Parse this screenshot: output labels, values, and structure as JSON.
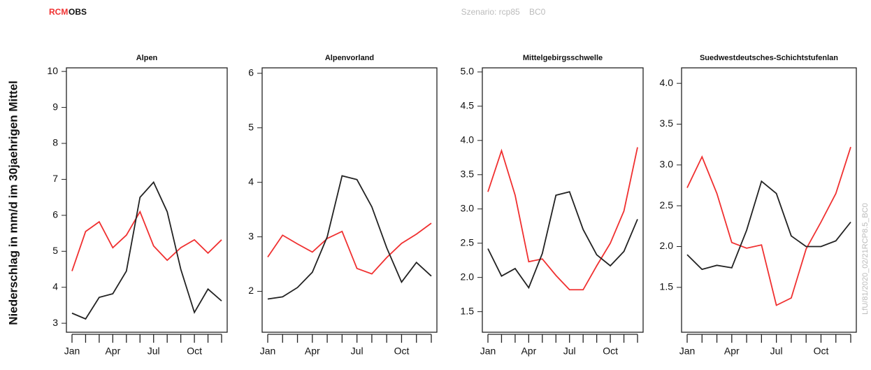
{
  "header": {
    "legend_prefix_note": null,
    "scenario": "Szenario: rcp85    BC0",
    "ylabel": "Niederschlag in mm/d im 30jaehrigen Mittel",
    "side_note": "LfU/81/2020_02/21RCP8.5_BC0"
  },
  "chart_data": [
    {
      "type": "line",
      "title": "Alpen",
      "categories": [
        "Jan",
        null,
        null,
        "Apr",
        null,
        null,
        "Jul",
        null,
        null,
        "Oct",
        null,
        null
      ],
      "series": [
        {
          "name": "RCM",
          "color": "#f03030",
          "values": [
            4.45,
            5.55,
            5.82,
            5.1,
            5.45,
            6.1,
            5.15,
            4.75,
            5.1,
            5.32,
            4.95,
            5.32
          ]
        },
        {
          "name": "OBS",
          "color": "#222222",
          "values": [
            3.28,
            3.12,
            3.72,
            3.82,
            4.45,
            6.5,
            6.92,
            6.1,
            4.5,
            3.3,
            3.95,
            3.62
          ]
        }
      ],
      "ylim": [
        2.75,
        10.1
      ],
      "yticks": [
        3,
        4,
        5,
        6,
        7,
        8,
        9,
        10
      ]
    },
    {
      "type": "line",
      "title": "Alpenvorland",
      "categories": [
        "Jan",
        null,
        null,
        "Apr",
        null,
        null,
        "Jul",
        null,
        null,
        "Oct",
        null,
        null
      ],
      "series": [
        {
          "name": "RCM",
          "color": "#f03030",
          "values": [
            2.63,
            3.03,
            2.87,
            2.72,
            2.97,
            3.1,
            2.42,
            2.32,
            2.62,
            2.88,
            3.05,
            3.25
          ]
        },
        {
          "name": "OBS",
          "color": "#222222",
          "values": [
            1.86,
            1.9,
            2.07,
            2.35,
            3.0,
            4.12,
            4.05,
            3.55,
            2.8,
            2.17,
            2.53,
            2.28
          ]
        }
      ],
      "ylim": [
        1.25,
        6.1
      ],
      "yticks": [
        2,
        3,
        4,
        5,
        6
      ]
    },
    {
      "type": "line",
      "title": "Mittelgebirgsschwelle",
      "categories": [
        "Jan",
        null,
        null,
        "Apr",
        null,
        null,
        "Jul",
        null,
        null,
        "Oct",
        null,
        null
      ],
      "series": [
        {
          "name": "RCM",
          "color": "#f03030",
          "values": [
            3.25,
            3.85,
            3.2,
            2.23,
            2.27,
            2.03,
            1.82,
            1.82,
            2.17,
            2.5,
            2.97,
            3.9
          ]
        },
        {
          "name": "OBS",
          "color": "#222222",
          "values": [
            2.42,
            2.02,
            2.13,
            1.85,
            2.35,
            3.2,
            3.25,
            2.7,
            2.33,
            2.17,
            2.38,
            2.85
          ]
        }
      ],
      "ylim": [
        1.2,
        5.06
      ],
      "yticks": [
        {
          "value": 1.5,
          "label": "1.5"
        },
        {
          "value": 2,
          "label": "2.0"
        },
        {
          "value": 2.5,
          "label": "2.5"
        },
        {
          "value": 3,
          "label": "3.0"
        },
        {
          "value": 3.5,
          "label": "3.5"
        },
        {
          "value": 4,
          "label": "4.0"
        },
        {
          "value": 4.5,
          "label": "4.5"
        },
        {
          "value": 5,
          "label": "5.0"
        }
      ]
    },
    {
      "type": "line",
      "title": "Suedwestdeutsches-Schichtstufenlan",
      "categories": [
        "Jan",
        null,
        null,
        "Apr",
        null,
        null,
        "Jul",
        null,
        null,
        "Oct",
        null,
        null
      ],
      "series": [
        {
          "name": "RCM",
          "color": "#f03030",
          "values": [
            2.72,
            3.1,
            2.65,
            2.05,
            1.98,
            2.02,
            1.28,
            1.37,
            1.97,
            2.3,
            2.65,
            3.22
          ]
        },
        {
          "name": "OBS",
          "color": "#222222",
          "values": [
            1.9,
            1.72,
            1.77,
            1.74,
            2.2,
            2.8,
            2.65,
            2.13,
            2.0,
            2.0,
            2.07,
            2.3
          ]
        }
      ],
      "ylim": [
        0.95,
        4.19
      ],
      "yticks": [
        {
          "value": 1.5,
          "label": "1.5"
        },
        {
          "value": 2,
          "label": "2.0"
        },
        {
          "value": 2.5,
          "label": "2.5"
        },
        {
          "value": 3,
          "label": "3.0"
        },
        {
          "value": 3.5,
          "label": "3.5"
        },
        {
          "value": 4,
          "label": "4.0"
        }
      ]
    }
  ]
}
